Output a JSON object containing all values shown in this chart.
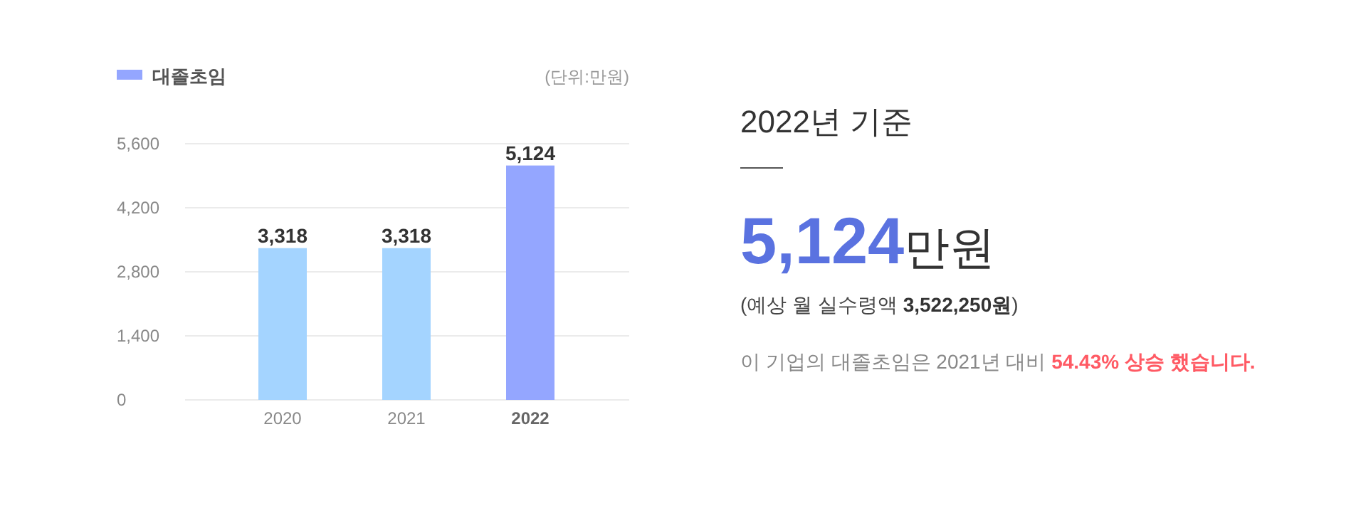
{
  "chart_data": [
    {
      "type": "bar",
      "categories": [
        "2020",
        "2021",
        "2022"
      ],
      "series": [
        {
          "name": "대졸초임",
          "color": "#94a6ff",
          "colors": [
            "#a4d4ff",
            "#a4d4ff",
            "#94a6ff"
          ],
          "values": [
            3318,
            3318,
            5124
          ],
          "value_labels": [
            "3,318",
            "3,318",
            "5,124"
          ]
        }
      ],
      "ylim": [
        0,
        5600
      ],
      "yticks": [
        {
          "value": 0,
          "label": "0"
        },
        {
          "value": 1400,
          "label": "1,400"
        },
        {
          "value": 2800,
          "label": "2,800"
        },
        {
          "value": 4200,
          "label": "4,200"
        },
        {
          "value": 5600,
          "label": "5,600"
        }
      ],
      "grid": "y",
      "legend": "top left",
      "annotations": [
        "(단위:만원)"
      ]
    },
    {
      "type": "other",
      "title": "2022년 기준",
      "annotations": [
        "5,124",
        "만원",
        "(예상 월 실수령액 ",
        "3,522,250원",
        ")",
        "이 기업의 대졸초임은 2021년 대비 ",
        "54.43% 상승 했습니다."
      ]
    }
  ]
}
